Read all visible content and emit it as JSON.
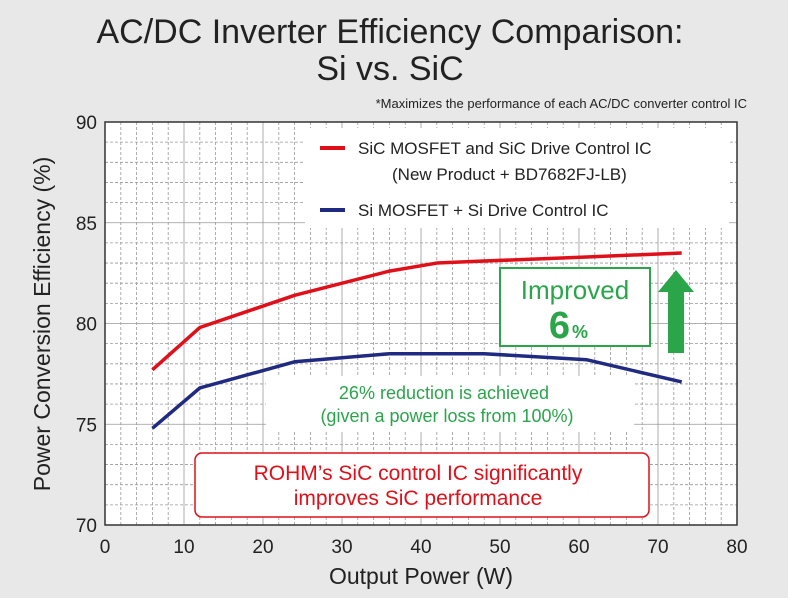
{
  "chart_data": {
    "type": "line",
    "title_line1": "AC/DC Inverter Efficiency Comparison:",
    "title_line2": "Si vs. SiC",
    "note": "*Maximizes the performance of each AC/DC converter control IC",
    "xlabel": "Output Power (W)",
    "ylabel": "Power Conversion Efficiency (%)",
    "xlim": [
      0,
      80
    ],
    "ylim": [
      70,
      90
    ],
    "xticks": [
      "0",
      "10",
      "20",
      "30",
      "40",
      "50",
      "60",
      "70",
      "80"
    ],
    "yticks": [
      "70",
      "75",
      "80",
      "85",
      "90"
    ],
    "grid": true,
    "legend_position": "top-right",
    "series": [
      {
        "name": "SiC MOSFET and SiC Drive Control IC",
        "name_line2": "(New Product + BD7682FJ-LB)",
        "color": "#e0101a",
        "x": [
          6,
          12,
          24,
          36,
          42,
          48,
          61,
          73
        ],
        "y": [
          77.7,
          79.8,
          81.4,
          82.6,
          83.0,
          83.1,
          83.3,
          83.5
        ]
      },
      {
        "name": "Si MOSFET + Si Drive Control IC",
        "color": "#1f2a80",
        "x": [
          6,
          12,
          24,
          36,
          42,
          48,
          61,
          73
        ],
        "y": [
          74.8,
          76.8,
          78.1,
          78.5,
          78.5,
          78.5,
          78.2,
          77.1
        ]
      }
    ],
    "annotations": {
      "improved_label": "Improved",
      "improved_value": "6",
      "improved_unit": "%",
      "reduction_line1": "26% reduction is achieved",
      "reduction_line2": "(given a power loss from 100%)",
      "callout_line1": "ROHM’s SiC control IC significantly",
      "callout_line2": "improves SiC performance"
    },
    "colors": {
      "green": "#2aa54a",
      "red": "#e0101a",
      "navy": "#1f2a80"
    }
  }
}
